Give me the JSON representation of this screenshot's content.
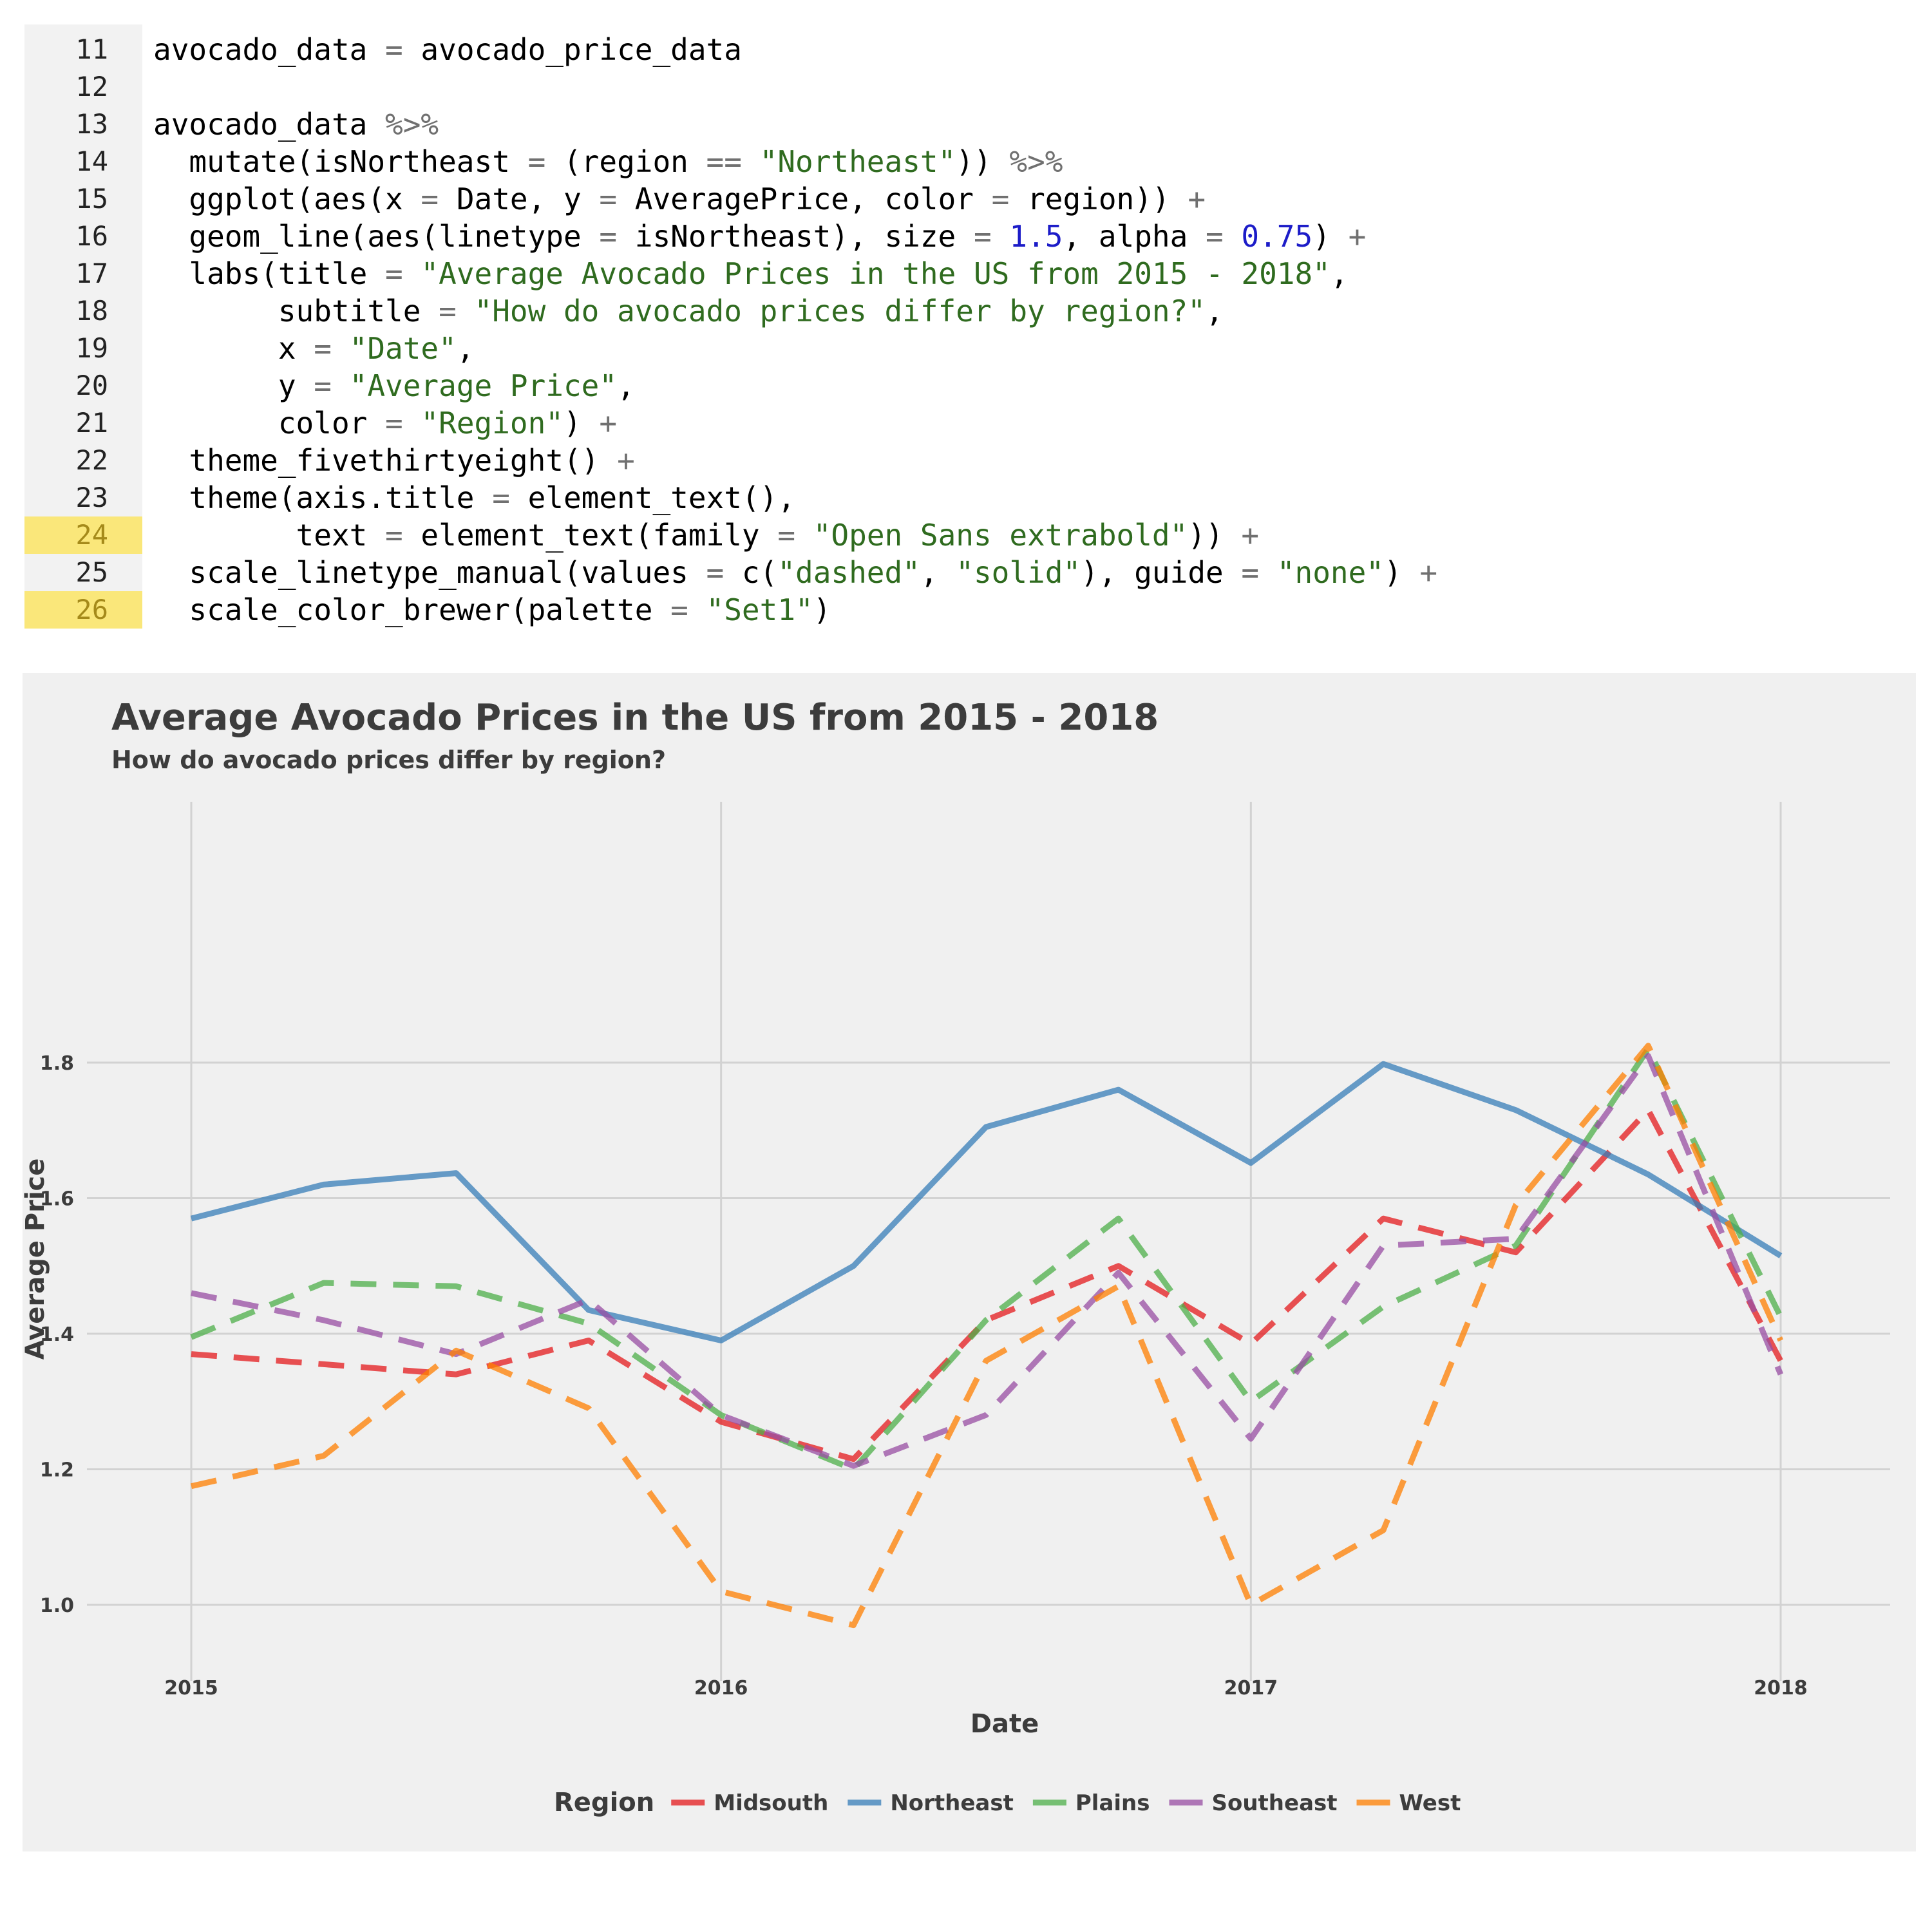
{
  "code": {
    "lines": [
      {
        "num": "11",
        "highlight": false,
        "tokens": [
          [
            "avocado_data ",
            ""
          ],
          [
            "=",
            "op"
          ],
          [
            " avocado_price_data",
            ""
          ]
        ]
      },
      {
        "num": "12",
        "highlight": false,
        "tokens": []
      },
      {
        "num": "13",
        "highlight": false,
        "tokens": [
          [
            "avocado_data ",
            ""
          ],
          [
            "%>%",
            "op"
          ]
        ]
      },
      {
        "num": "14",
        "highlight": false,
        "tokens": [
          [
            "  mutate(isNortheast ",
            ""
          ],
          [
            "=",
            "op"
          ],
          [
            " (region ",
            ""
          ],
          [
            "==",
            "op"
          ],
          [
            " ",
            ""
          ],
          [
            "\"Northeast\"",
            "str"
          ],
          [
            ")) ",
            ""
          ],
          [
            "%>%",
            "op"
          ]
        ]
      },
      {
        "num": "15",
        "highlight": false,
        "tokens": [
          [
            "  ggplot(aes(x ",
            ""
          ],
          [
            "=",
            "op"
          ],
          [
            " Date, y ",
            ""
          ],
          [
            "=",
            "op"
          ],
          [
            " AveragePrice, color ",
            ""
          ],
          [
            "=",
            "op"
          ],
          [
            " region)) ",
            ""
          ],
          [
            "+",
            "op"
          ]
        ]
      },
      {
        "num": "16",
        "highlight": false,
        "tokens": [
          [
            "  geom_line(aes(linetype ",
            ""
          ],
          [
            "=",
            "op"
          ],
          [
            " isNortheast), size ",
            ""
          ],
          [
            "=",
            "op"
          ],
          [
            " ",
            ""
          ],
          [
            "1.5",
            "num"
          ],
          [
            ", alpha ",
            ""
          ],
          [
            "=",
            "op"
          ],
          [
            " ",
            ""
          ],
          [
            "0.75",
            "num"
          ],
          [
            ") ",
            ""
          ],
          [
            "+",
            "op"
          ]
        ]
      },
      {
        "num": "17",
        "highlight": false,
        "tokens": [
          [
            "  labs(title ",
            ""
          ],
          [
            "=",
            "op"
          ],
          [
            " ",
            ""
          ],
          [
            "\"Average Avocado Prices in the US from 2015 - 2018\"",
            "str"
          ],
          [
            ",",
            ""
          ]
        ]
      },
      {
        "num": "18",
        "highlight": false,
        "tokens": [
          [
            "       subtitle ",
            ""
          ],
          [
            "=",
            "op"
          ],
          [
            " ",
            ""
          ],
          [
            "\"How do avocado prices differ by region?\"",
            "str"
          ],
          [
            ",",
            ""
          ]
        ]
      },
      {
        "num": "19",
        "highlight": false,
        "tokens": [
          [
            "       x ",
            ""
          ],
          [
            "=",
            "op"
          ],
          [
            " ",
            ""
          ],
          [
            "\"Date\"",
            "str"
          ],
          [
            ",",
            ""
          ]
        ]
      },
      {
        "num": "20",
        "highlight": false,
        "tokens": [
          [
            "       y ",
            ""
          ],
          [
            "=",
            "op"
          ],
          [
            " ",
            ""
          ],
          [
            "\"Average Price\"",
            "str"
          ],
          [
            ",",
            ""
          ]
        ]
      },
      {
        "num": "21",
        "highlight": false,
        "tokens": [
          [
            "       color ",
            ""
          ],
          [
            "=",
            "op"
          ],
          [
            " ",
            ""
          ],
          [
            "\"Region\"",
            "str"
          ],
          [
            ") ",
            ""
          ],
          [
            "+",
            "op"
          ]
        ]
      },
      {
        "num": "22",
        "highlight": false,
        "tokens": [
          [
            "  theme_fivethirtyeight() ",
            ""
          ],
          [
            "+",
            "op"
          ]
        ]
      },
      {
        "num": "23",
        "highlight": false,
        "tokens": [
          [
            "  theme(axis.title ",
            ""
          ],
          [
            "=",
            "op"
          ],
          [
            " element_text(),",
            ""
          ]
        ]
      },
      {
        "num": "24",
        "highlight": true,
        "tokens": [
          [
            "        text ",
            ""
          ],
          [
            "=",
            "op"
          ],
          [
            " element_text(family ",
            ""
          ],
          [
            "=",
            "op"
          ],
          [
            " ",
            ""
          ],
          [
            "\"Open Sans extrabold\"",
            "str"
          ],
          [
            ")) ",
            ""
          ],
          [
            "+",
            "op"
          ]
        ]
      },
      {
        "num": "25",
        "highlight": false,
        "tokens": [
          [
            "  scale_linetype_manual(values ",
            ""
          ],
          [
            "=",
            "op"
          ],
          [
            " c(",
            ""
          ],
          [
            "\"dashed\"",
            "str"
          ],
          [
            ", ",
            ""
          ],
          [
            "\"solid\"",
            "str"
          ],
          [
            "), guide ",
            ""
          ],
          [
            "=",
            "op"
          ],
          [
            " ",
            ""
          ],
          [
            "\"none\"",
            "str"
          ],
          [
            ") ",
            ""
          ],
          [
            "+",
            "op"
          ]
        ]
      },
      {
        "num": "26",
        "highlight": true,
        "tokens": [
          [
            "  scale_color_brewer(palette ",
            ""
          ],
          [
            "=",
            "op"
          ],
          [
            " ",
            ""
          ],
          [
            "\"Set1\"",
            "str"
          ],
          [
            ")",
            ""
          ]
        ]
      }
    ]
  },
  "chart_data": {
    "type": "line",
    "title": "Average Avocado Prices in the US from 2015 - 2018",
    "subtitle": "How do avocado prices differ by region?",
    "xlabel": "Date",
    "ylabel": "Average Price",
    "x": [
      2015.0,
      2015.25,
      2015.5,
      2015.75,
      2016.0,
      2016.25,
      2016.5,
      2016.75,
      2017.0,
      2017.25,
      2017.5,
      2017.75,
      2018.0
    ],
    "xticks": [
      2015,
      2016,
      2017,
      2018
    ],
    "xtick_labels": [
      "2015",
      "2016",
      "2017",
      "2018"
    ],
    "xlim": [
      2014.88,
      2018.15
    ],
    "yticks": [
      1.0,
      1.2,
      1.4,
      1.6,
      1.8
    ],
    "ytick_labels": [
      "1.0",
      "1.2",
      "1.4",
      "1.6",
      "1.8"
    ],
    "ylim": [
      0.91,
      1.87
    ],
    "grid": true,
    "legend_title": "Region",
    "legend_position": "bottom",
    "series": [
      {
        "name": "Midsouth",
        "color": "#e41a1c",
        "dashed": true,
        "values": [
          1.37,
          1.355,
          1.34,
          1.39,
          1.27,
          1.215,
          1.42,
          1.5,
          1.385,
          1.57,
          1.52,
          1.73,
          1.36
        ]
      },
      {
        "name": "Northeast",
        "color": "#377eb8",
        "dashed": false,
        "values": [
          1.57,
          1.62,
          1.637,
          1.435,
          1.39,
          1.5,
          1.705,
          1.76,
          1.652,
          1.798,
          1.73,
          1.635,
          1.515
        ]
      },
      {
        "name": "Plains",
        "color": "#4daf4a",
        "dashed": true,
        "values": [
          1.395,
          1.475,
          1.47,
          1.415,
          1.28,
          1.2,
          1.42,
          1.57,
          1.3,
          1.44,
          1.53,
          1.82,
          1.425
        ]
      },
      {
        "name": "Southeast",
        "color": "#984ea3",
        "dashed": true,
        "values": [
          1.46,
          1.42,
          1.37,
          1.45,
          1.28,
          1.205,
          1.28,
          1.49,
          1.245,
          1.53,
          1.54,
          1.81,
          1.34
        ]
      },
      {
        "name": "West",
        "color": "#ff7f00",
        "dashed": true,
        "values": [
          1.175,
          1.22,
          1.375,
          1.29,
          1.02,
          0.97,
          1.36,
          1.47,
          1.0,
          1.11,
          1.59,
          1.825,
          1.39
        ]
      }
    ]
  }
}
